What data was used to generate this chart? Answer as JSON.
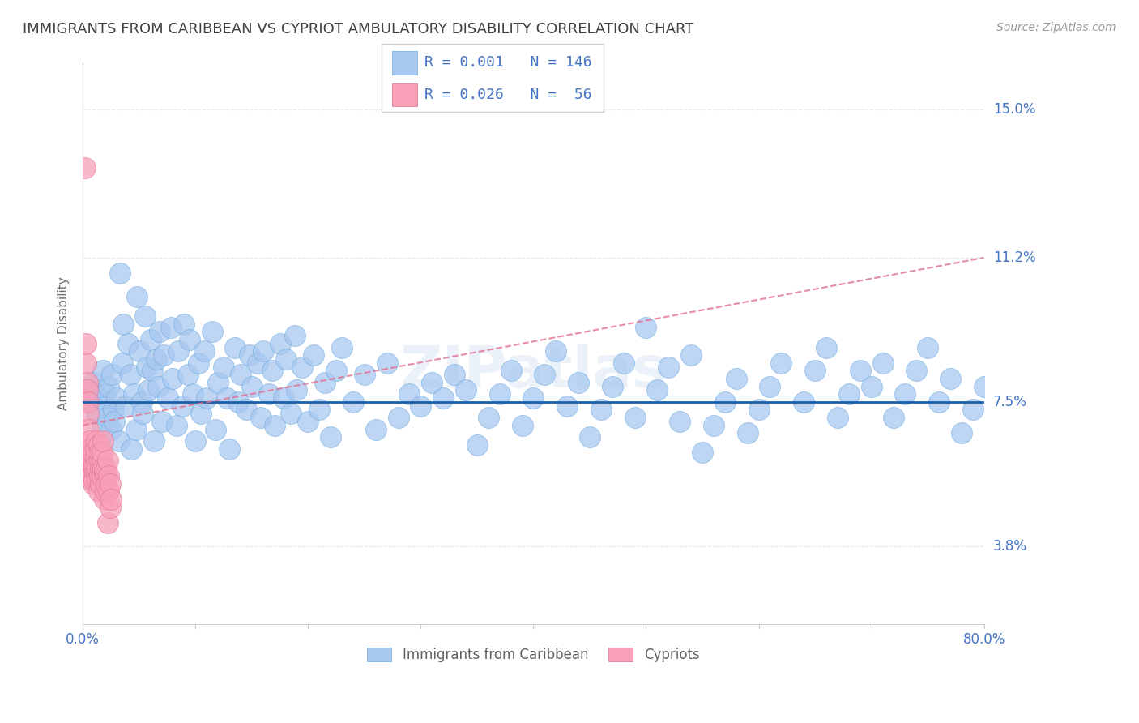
{
  "title": "IMMIGRANTS FROM CARIBBEAN VS CYPRIOT AMBULATORY DISABILITY CORRELATION CHART",
  "source": "Source: ZipAtlas.com",
  "ylabel": "Ambulatory Disability",
  "xmin": 0.0,
  "xmax": 0.8,
  "ymin": 0.018,
  "ymax": 0.162,
  "yticks": [
    0.038,
    0.075,
    0.112,
    0.15
  ],
  "ytick_labels": [
    "3.8%",
    "7.5%",
    "11.2%",
    "15.0%"
  ],
  "series1_name": "Immigrants from Caribbean",
  "series1_color": "#a8c8f0",
  "series1_edge_color": "#6aaae0",
  "series1_line_color": "#1a5faa",
  "series2_name": "Cypriots",
  "series2_color": "#f8a0b8",
  "series2_edge_color": "#e07090",
  "series2_line_color": "#e07090",
  "legend_R1": "0.001",
  "legend_N1": "146",
  "legend_R2": "0.026",
  "legend_N2": " 56",
  "watermark": "ZIPatlas",
  "background_color": "#ffffff",
  "grid_color": "#e8e8e8",
  "axis_label_color": "#4472c4",
  "title_color": "#404040",
  "title_fontsize": 13,
  "source_fontsize": 10,
  "caribbean_x": [
    0.005,
    0.008,
    0.01,
    0.012,
    0.015,
    0.017,
    0.018,
    0.02,
    0.021,
    0.022,
    0.023,
    0.025,
    0.026,
    0.027,
    0.028,
    0.03,
    0.032,
    0.033,
    0.035,
    0.036,
    0.038,
    0.04,
    0.042,
    0.043,
    0.045,
    0.047,
    0.048,
    0.05,
    0.052,
    0.053,
    0.055,
    0.057,
    0.058,
    0.06,
    0.062,
    0.063,
    0.065,
    0.067,
    0.068,
    0.07,
    0.072,
    0.075,
    0.078,
    0.08,
    0.083,
    0.085,
    0.088,
    0.09,
    0.093,
    0.095,
    0.098,
    0.1,
    0.103,
    0.105,
    0.108,
    0.11,
    0.115,
    0.118,
    0.12,
    0.125,
    0.128,
    0.13,
    0.135,
    0.138,
    0.14,
    0.145,
    0.148,
    0.15,
    0.155,
    0.158,
    0.16,
    0.165,
    0.168,
    0.17,
    0.175,
    0.178,
    0.18,
    0.185,
    0.188,
    0.19,
    0.195,
    0.2,
    0.205,
    0.21,
    0.215,
    0.22,
    0.225,
    0.23,
    0.24,
    0.25,
    0.26,
    0.27,
    0.28,
    0.29,
    0.3,
    0.31,
    0.32,
    0.33,
    0.34,
    0.35,
    0.36,
    0.37,
    0.38,
    0.39,
    0.4,
    0.41,
    0.42,
    0.43,
    0.44,
    0.45,
    0.46,
    0.47,
    0.48,
    0.49,
    0.5,
    0.51,
    0.52,
    0.53,
    0.54,
    0.55,
    0.56,
    0.57,
    0.58,
    0.59,
    0.6,
    0.61,
    0.62,
    0.64,
    0.65,
    0.66,
    0.67,
    0.68,
    0.69,
    0.7,
    0.71,
    0.72,
    0.73,
    0.74,
    0.75,
    0.76,
    0.77,
    0.78,
    0.79,
    0.8,
    0.81,
    0.82
  ],
  "caribbean_y": [
    0.075,
    0.078,
    0.08,
    0.072,
    0.076,
    0.069,
    0.083,
    0.077,
    0.074,
    0.071,
    0.079,
    0.068,
    0.082,
    0.073,
    0.07,
    0.076,
    0.065,
    0.108,
    0.085,
    0.095,
    0.074,
    0.09,
    0.082,
    0.063,
    0.077,
    0.068,
    0.102,
    0.088,
    0.075,
    0.072,
    0.097,
    0.084,
    0.078,
    0.091,
    0.083,
    0.065,
    0.086,
    0.079,
    0.093,
    0.07,
    0.087,
    0.076,
    0.094,
    0.081,
    0.069,
    0.088,
    0.074,
    0.095,
    0.082,
    0.091,
    0.077,
    0.065,
    0.085,
    0.072,
    0.088,
    0.076,
    0.093,
    0.068,
    0.08,
    0.084,
    0.076,
    0.063,
    0.089,
    0.075,
    0.082,
    0.073,
    0.087,
    0.079,
    0.085,
    0.071,
    0.088,
    0.077,
    0.083,
    0.069,
    0.09,
    0.076,
    0.086,
    0.072,
    0.092,
    0.078,
    0.084,
    0.07,
    0.087,
    0.073,
    0.08,
    0.066,
    0.083,
    0.089,
    0.075,
    0.082,
    0.068,
    0.085,
    0.071,
    0.077,
    0.074,
    0.08,
    0.076,
    0.082,
    0.078,
    0.064,
    0.071,
    0.077,
    0.083,
    0.069,
    0.076,
    0.082,
    0.088,
    0.074,
    0.08,
    0.066,
    0.073,
    0.079,
    0.085,
    0.071,
    0.094,
    0.078,
    0.084,
    0.07,
    0.087,
    0.062,
    0.069,
    0.075,
    0.081,
    0.067,
    0.073,
    0.079,
    0.085,
    0.075,
    0.083,
    0.089,
    0.071,
    0.077,
    0.083,
    0.079,
    0.085,
    0.071,
    0.077,
    0.083,
    0.089,
    0.075,
    0.081,
    0.067,
    0.073,
    0.079,
    0.085,
    0.071
  ],
  "cypriot_x": [
    0.002,
    0.003,
    0.003,
    0.004,
    0.004,
    0.005,
    0.005,
    0.005,
    0.006,
    0.006,
    0.006,
    0.007,
    0.007,
    0.007,
    0.008,
    0.008,
    0.008,
    0.009,
    0.009,
    0.009,
    0.01,
    0.01,
    0.01,
    0.011,
    0.011,
    0.011,
    0.012,
    0.012,
    0.013,
    0.013,
    0.013,
    0.014,
    0.014,
    0.015,
    0.015,
    0.015,
    0.016,
    0.016,
    0.017,
    0.017,
    0.017,
    0.018,
    0.018,
    0.019,
    0.019,
    0.02,
    0.02,
    0.021,
    0.021,
    0.022,
    0.022,
    0.023,
    0.023,
    0.024,
    0.024,
    0.025
  ],
  "cypriot_y": [
    0.135,
    0.085,
    0.09,
    0.08,
    0.078,
    0.075,
    0.072,
    0.068,
    0.065,
    0.062,
    0.058,
    0.063,
    0.06,
    0.057,
    0.055,
    0.058,
    0.056,
    0.06,
    0.054,
    0.062,
    0.058,
    0.059,
    0.055,
    0.061,
    0.057,
    0.063,
    0.059,
    0.065,
    0.056,
    0.055,
    0.058,
    0.052,
    0.064,
    0.06,
    0.056,
    0.062,
    0.058,
    0.054,
    0.06,
    0.056,
    0.062,
    0.058,
    0.065,
    0.057,
    0.05,
    0.056,
    0.052,
    0.058,
    0.054,
    0.06,
    0.044,
    0.056,
    0.052,
    0.048,
    0.054,
    0.05
  ],
  "cypriot_trend_x0": 0.0,
  "cypriot_trend_x1": 0.8,
  "cypriot_trend_y0": 0.069,
  "cypriot_trend_y1": 0.112
}
